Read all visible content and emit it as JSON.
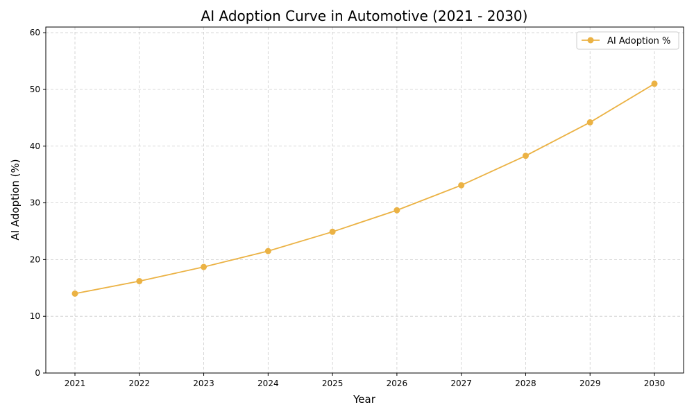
{
  "chart_data": {
    "type": "line",
    "title": "AI Adoption Curve in Automotive (2021 - 2030)",
    "xlabel": "Year",
    "ylabel": "AI Adoption (%)",
    "categories": [
      "2021",
      "2022",
      "2023",
      "2024",
      "2025",
      "2026",
      "2027",
      "2028",
      "2029",
      "2030"
    ],
    "series": [
      {
        "name": "AI Adoption %",
        "values": [
          14.0,
          16.2,
          18.7,
          21.5,
          24.9,
          28.7,
          33.1,
          38.3,
          44.2,
          51.0
        ],
        "color": "#EBB244",
        "marker": "circle"
      }
    ],
    "ylim": [
      0,
      61
    ],
    "yticks": [
      0,
      10,
      20,
      30,
      40,
      50,
      60
    ],
    "grid": true,
    "grid_style": "dashed",
    "legend_position": "top-right"
  }
}
